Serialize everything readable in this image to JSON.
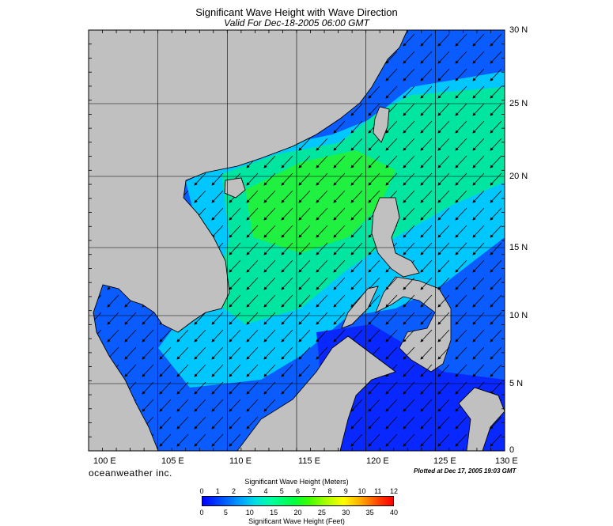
{
  "title": "Significant Wave Height with Wave Direction",
  "subtitle": "Valid For Dec-18-2005 06:00 GMT",
  "lat_labels": [
    "30 N",
    "25 N",
    "20 N",
    "15 N",
    "10 N",
    "5 N",
    "0"
  ],
  "lon_labels": [
    "100 E",
    "105 E",
    "110 E",
    "115 E",
    "120 E",
    "125 E",
    "130 E"
  ],
  "brand": "oceanweather inc.",
  "plotted": "Plotted at Dec 17, 2005 19:03 GMT",
  "colorbar": {
    "meters_title": "Significant Wave Height (Meters)",
    "meters_ticks": [
      "0",
      "1",
      "2",
      "3",
      "4",
      "5",
      "6",
      "7",
      "8",
      "9",
      "10",
      "11",
      "12"
    ],
    "feet_title": "Significant Wave Height (Feet)",
    "feet_ticks": [
      "0",
      "5",
      "10",
      "15",
      "20",
      "25",
      "30",
      "35",
      "40"
    ]
  },
  "colors": {
    "land": "#c0c0c0",
    "sea_low": "#0000ff",
    "sea_high": "#40ff00"
  }
}
